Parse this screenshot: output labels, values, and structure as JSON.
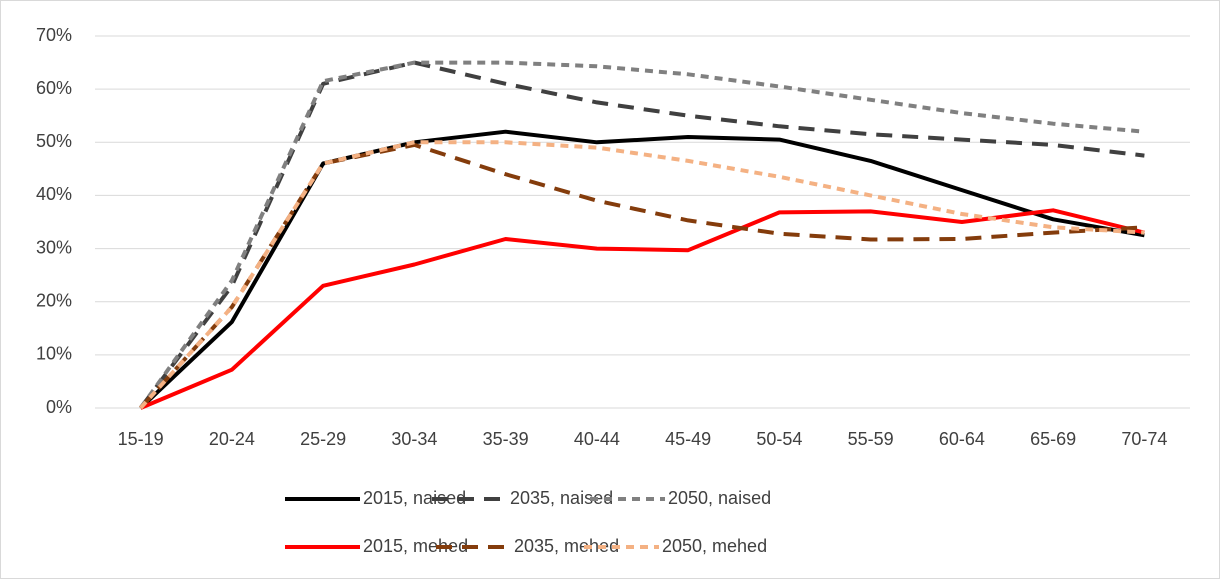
{
  "chart_data": {
    "type": "line",
    "categories": [
      "15-19",
      "20-24",
      "25-29",
      "30-34",
      "35-39",
      "40-44",
      "45-49",
      "50-54",
      "55-59",
      "60-64",
      "65-69",
      "70-74"
    ],
    "ylim": [
      0,
      70
    ],
    "yticks": [
      {
        "value": 0,
        "label": "0%"
      },
      {
        "value": 10,
        "label": "10%"
      },
      {
        "value": 20,
        "label": "20%"
      },
      {
        "value": 30,
        "label": "30%"
      },
      {
        "value": 40,
        "label": "40%"
      },
      {
        "value": 50,
        "label": "50%"
      },
      {
        "value": 60,
        "label": "60%"
      },
      {
        "value": 70,
        "label": "70%"
      }
    ],
    "grid": true,
    "legend": "bottom",
    "series": [
      {
        "name": "2015, naised",
        "color": "#000000",
        "dash": "solid",
        "values": [
          0,
          16.2,
          46,
          50,
          52,
          50,
          51,
          50.5,
          46.5,
          41,
          35.5,
          32.5
        ]
      },
      {
        "name": "2035, naised",
        "color": "#404040",
        "dash": "long",
        "values": [
          0,
          23,
          61,
          65,
          61,
          57.5,
          55,
          53,
          51.5,
          50.5,
          49.5,
          47.5
        ]
      },
      {
        "name": "2050, naised",
        "color": "#808080",
        "dash": "short",
        "values": [
          0,
          24,
          61.5,
          65,
          65,
          64.3,
          62.8,
          60.5,
          58,
          55.5,
          53.5,
          52
        ]
      },
      {
        "name": "2015, mehed",
        "color": "#ff0000",
        "dash": "solid",
        "values": [
          0,
          7.2,
          23,
          27,
          31.8,
          30,
          29.7,
          36.8,
          37,
          35,
          37.2,
          33
        ]
      },
      {
        "name": "2035, mehed",
        "color": "#843c0c",
        "dash": "long",
        "values": [
          0,
          19,
          46,
          49.5,
          44,
          39,
          35.3,
          32.8,
          31.7,
          31.8,
          33,
          34
        ]
      },
      {
        "name": "2050, mehed",
        "color": "#f4b183",
        "dash": "short",
        "values": [
          0,
          19,
          46,
          50,
          50,
          49,
          46.5,
          43.5,
          40,
          36.5,
          34,
          33
        ]
      }
    ]
  }
}
